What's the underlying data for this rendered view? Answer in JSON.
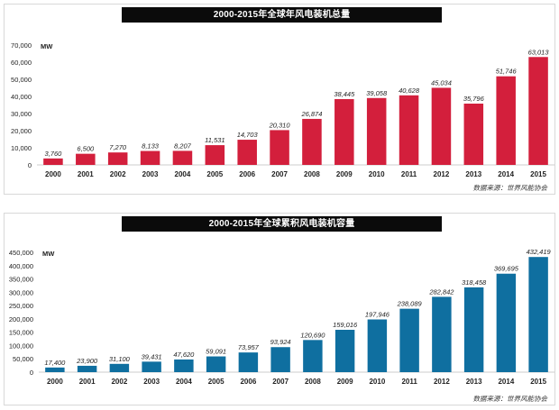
{
  "colors": {
    "bar1": "#d31f3c",
    "bar2": "#0f6fa0",
    "title_bg": "#0b0b0b"
  },
  "chart_data": [
    {
      "type": "bar",
      "title": "2000-2015年全球年风电装机总量",
      "unit": "MW",
      "categories": [
        "2000",
        "2001",
        "2002",
        "2003",
        "2004",
        "2005",
        "2006",
        "2007",
        "2008",
        "2009",
        "2010",
        "2011",
        "2012",
        "2013",
        "2014",
        "2015"
      ],
      "values": [
        3760,
        6500,
        7270,
        8133,
        8207,
        11531,
        14703,
        20310,
        26874,
        38445,
        39058,
        40628,
        45034,
        35796,
        51746,
        63013
      ],
      "value_labels": [
        "3,760",
        "6,500",
        "7,270",
        "8,133",
        "8,207",
        "11,531",
        "14,703",
        "20,310",
        "26,874",
        "38,445",
        "39,058",
        "40,628",
        "45,034",
        "35,796",
        "51,746",
        "63,013"
      ],
      "ylim": [
        0,
        70000
      ],
      "yticks": [
        0,
        10000,
        20000,
        30000,
        40000,
        50000,
        60000,
        70000
      ],
      "ytick_labels": [
        "0",
        "10,000",
        "20,000",
        "30,000",
        "40,000",
        "50,000",
        "60,000",
        "70,000"
      ],
      "source": "数据来源：世界风能协会"
    },
    {
      "type": "bar",
      "title": "2000-2015年全球累积风电装机容量",
      "unit": "MW",
      "categories": [
        "2000",
        "2001",
        "2002",
        "2003",
        "2004",
        "2005",
        "2006",
        "2007",
        "2008",
        "2009",
        "2010",
        "2011",
        "2012",
        "2013",
        "2014",
        "2015"
      ],
      "values": [
        17400,
        23900,
        31100,
        39431,
        47620,
        59091,
        73957,
        93924,
        120690,
        159016,
        197946,
        238089,
        282842,
        318458,
        369695,
        432419
      ],
      "value_labels": [
        "17,400",
        "23,900",
        "31,100",
        "39,431",
        "47,620",
        "59,091",
        "73,957",
        "93,924",
        "120,690",
        "159,016",
        "197,946",
        "238,089",
        "282,842",
        "318,458",
        "369,695",
        "432,419"
      ],
      "ylim": [
        0,
        450000
      ],
      "yticks": [
        0,
        50000,
        100000,
        150000,
        200000,
        250000,
        300000,
        350000,
        400000,
        450000
      ],
      "ytick_labels": [
        "0",
        "50,000",
        "100,000",
        "150,000",
        "200,000",
        "250,000",
        "300,000",
        "350,000",
        "400,000",
        "450,000"
      ],
      "source": "数据来源：世界风能协会"
    }
  ]
}
